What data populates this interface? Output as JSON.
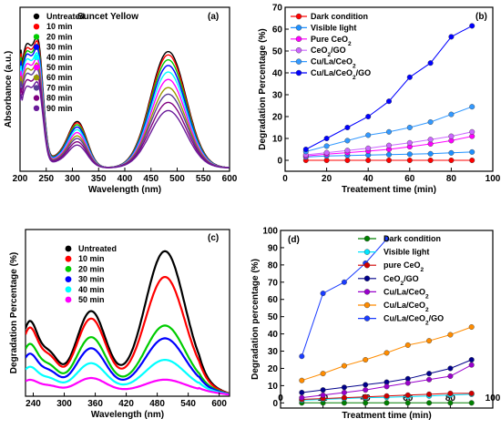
{
  "figure": {
    "background": "#ffffff"
  },
  "chart_data": [
    {
      "id": "a",
      "panel_label": "(a)",
      "type": "line",
      "title": "Suncet Yellow",
      "xlabel": "Wavelength (nm)",
      "ylabel": "Absorbance (a.u.)",
      "xlim": [
        200,
        600
      ],
      "xticks": [
        200,
        250,
        300,
        350,
        400,
        450,
        500,
        550,
        600
      ],
      "ylim": [
        0,
        2.0
      ],
      "yticks_shown": false,
      "legend_position": "upper-left",
      "series": [
        {
          "name": "Untreated",
          "color": "#000000",
          "peak_483": 1.42,
          "peak_232": 1.55
        },
        {
          "name": "10 min",
          "color": "#ff0000",
          "peak_483": 1.38,
          "peak_232": 1.5
        },
        {
          "name": "20 min",
          "color": "#00cc00",
          "peak_483": 1.32,
          "peak_232": 1.46
        },
        {
          "name": "30 min",
          "color": "#0000ff",
          "peak_483": 1.25,
          "peak_232": 1.42
        },
        {
          "name": "40 min",
          "color": "#00ffff",
          "peak_483": 1.17,
          "peak_232": 1.36
        },
        {
          "name": "50 min",
          "color": "#ff00ff",
          "peak_483": 1.08,
          "peak_232": 1.3
        },
        {
          "name": "60 min",
          "color": "#999900",
          "peak_483": 0.98,
          "peak_232": 1.24
        },
        {
          "name": "70 min",
          "color": "#5a3c96",
          "peak_483": 0.9,
          "peak_232": 1.18
        },
        {
          "name": "80 min",
          "color": "#800080",
          "peak_483": 0.8,
          "peak_232": 1.1
        },
        {
          "name": "90 min",
          "color": "#6a1b9a",
          "peak_483": 0.7,
          "peak_232": 1.02
        }
      ]
    },
    {
      "id": "b",
      "panel_label": "(b)",
      "type": "line",
      "xlabel": "Treatement time (min)",
      "ylabel": "Degradation Percentage (%)",
      "xlim": [
        0,
        100
      ],
      "xticks": [
        0,
        20,
        40,
        60,
        80,
        100
      ],
      "ylim": [
        -5,
        70
      ],
      "yticks": [
        0,
        10,
        20,
        30,
        40,
        50,
        60,
        70
      ],
      "legend_position": "upper-left",
      "x": [
        10,
        20,
        30,
        40,
        50,
        60,
        70,
        80,
        90
      ],
      "series": [
        {
          "name": "Dark condition",
          "color": "#ff0000",
          "values": [
            0.0,
            0.0,
            0.0,
            0.0,
            0.0,
            0.0,
            0.0,
            0.0,
            0.0
          ]
        },
        {
          "name": "Visible light",
          "color": "#1e90ff",
          "values": [
            1.5,
            2.0,
            2.2,
            2.4,
            2.6,
            2.8,
            3.0,
            3.4,
            3.8
          ]
        },
        {
          "name": "Pure CeO2",
          "color": "#ff00ff",
          "values": [
            2.0,
            2.8,
            3.5,
            4.2,
            5.0,
            6.2,
            7.5,
            9.0,
            11.0
          ]
        },
        {
          "name": "CeO2/GO",
          "color": "#cc66ff",
          "values": [
            2.5,
            3.5,
            4.5,
            5.5,
            6.8,
            8.0,
            9.5,
            11.0,
            13.0
          ]
        },
        {
          "name": "Cu/La/CeO2",
          "color": "#3399ff",
          "values": [
            4.0,
            6.5,
            9.0,
            11.5,
            13.0,
            15.0,
            17.5,
            21.0,
            24.5
          ]
        },
        {
          "name": "Cu/La/CeO2/GO",
          "color": "#0000ff",
          "values": [
            5.0,
            10.0,
            15.0,
            20.0,
            27.0,
            38.0,
            44.5,
            56.5,
            61.5
          ]
        }
      ]
    },
    {
      "id": "c",
      "panel_label": "(c)",
      "type": "line",
      "xlabel": "Wavelength (nm)",
      "ylabel": "Degradation Percentage (%)",
      "xlim": [
        225,
        620
      ],
      "xticks": [
        240,
        300,
        360,
        420,
        480,
        540,
        600
      ],
      "ylim": [
        0,
        1.0
      ],
      "yticks_shown": false,
      "legend_position": "upper-center",
      "series": [
        {
          "name": "Untreated",
          "color": "#000000",
          "peak_495": 0.8,
          "peak_350": 0.44
        },
        {
          "name": "10 min",
          "color": "#ff0000",
          "peak_495": 0.65,
          "peak_350": 0.4
        },
        {
          "name": "20 min",
          "color": "#00cc00",
          "peak_495": 0.37,
          "peak_350": 0.3
        },
        {
          "name": "30 min",
          "color": "#0000ff",
          "peak_495": 0.3,
          "peak_350": 0.24
        },
        {
          "name": "40 min",
          "color": "#00ffff",
          "peak_495": 0.18,
          "peak_350": 0.16
        },
        {
          "name": "50 min",
          "color": "#ff00ff",
          "peak_495": 0.07,
          "peak_350": 0.08
        }
      ]
    },
    {
      "id": "d",
      "panel_label": "(d)",
      "type": "line",
      "xlabel": "Treatment time (min)",
      "ylabel": "Degradation percentage (%)",
      "xlim": [
        0,
        100
      ],
      "xticks": [
        0,
        20,
        40,
        60,
        80,
        100
      ],
      "ylim": [
        -3,
        100
      ],
      "yticks": [
        0,
        10,
        20,
        30,
        40,
        50,
        60,
        70,
        80,
        90,
        100
      ],
      "legend_position": "upper-right",
      "series": [
        {
          "name": "Dark condition",
          "color": "#008000",
          "x": [
            10,
            20,
            30,
            40,
            50,
            60,
            70,
            80,
            90
          ],
          "values": [
            0.0,
            0.0,
            0.0,
            0.0,
            0.0,
            0.0,
            0.0,
            0.0,
            0.0
          ]
        },
        {
          "name": "Visible light",
          "color": "#00e5ff",
          "x": [
            10,
            20,
            30,
            40,
            50,
            60,
            70,
            80,
            90
          ],
          "values": [
            1.5,
            2.0,
            2.5,
            3.0,
            3.2,
            3.6,
            4.0,
            4.5,
            5.0
          ]
        },
        {
          "name": "pure CeO2",
          "color": "#d10000",
          "x": [
            10,
            20,
            30,
            40,
            50,
            60,
            70,
            80,
            90
          ],
          "values": [
            2.0,
            2.5,
            3.0,
            3.5,
            4.0,
            4.5,
            5.0,
            5.5,
            5.5
          ]
        },
        {
          "name": "CeO2/GO",
          "color": "#00008b",
          "x": [
            10,
            20,
            30,
            40,
            50,
            60,
            70,
            80,
            90
          ],
          "values": [
            6.0,
            7.5,
            9.0,
            10.5,
            12.0,
            14.0,
            17.0,
            20.0,
            25.0
          ]
        },
        {
          "name": "Cu/La/CeO2",
          "color": "#9900cc",
          "x": [
            10,
            20,
            30,
            40,
            50,
            60,
            70,
            80,
            90
          ],
          "values": [
            3.0,
            4.5,
            6.0,
            7.5,
            9.5,
            11.5,
            13.5,
            15.5,
            22.0
          ]
        },
        {
          "name": "Cu/La/CeO2",
          "color": "#ff8c00",
          "x": [
            10,
            20,
            30,
            40,
            50,
            60,
            70,
            80,
            90
          ],
          "values": [
            13.0,
            17.0,
            21.5,
            25.0,
            29.0,
            33.5,
            36.0,
            39.5,
            44.0
          ]
        },
        {
          "name": "Cu/La/CeO2/GO",
          "color": "#1a3cff",
          "x": [
            10,
            20,
            30,
            40,
            50
          ],
          "values": [
            27.0,
            63.5,
            70.0,
            81.0,
            95.0
          ]
        }
      ]
    }
  ]
}
